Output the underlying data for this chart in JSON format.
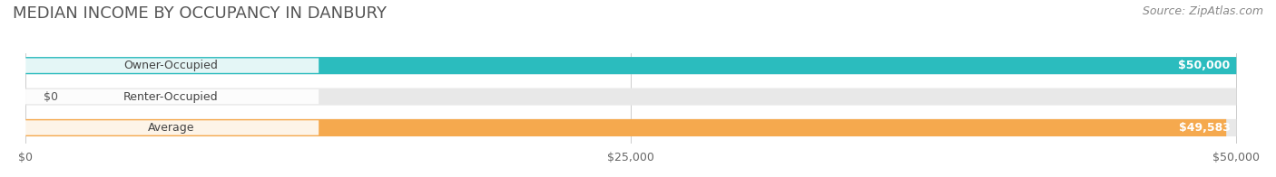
{
  "title": "MEDIAN INCOME BY OCCUPANCY IN DANBURY",
  "source": "Source: ZipAtlas.com",
  "categories": [
    "Owner-Occupied",
    "Renter-Occupied",
    "Average"
  ],
  "values": [
    50000,
    0,
    49583
  ],
  "bar_colors": [
    "#2bbcbe",
    "#c9a8d4",
    "#f5a94e"
  ],
  "bar_labels": [
    "$50,000",
    "$0",
    "$49,583"
  ],
  "label_inside": [
    true,
    false,
    true
  ],
  "xlim": [
    0,
    50000
  ],
  "xticks": [
    0,
    25000,
    50000
  ],
  "xtick_labels": [
    "$0",
    "$25,000",
    "$50,000"
  ],
  "bg_color": "#f5f5f5",
  "bar_bg_color": "#e8e8e8",
  "title_fontsize": 13,
  "source_fontsize": 9,
  "label_fontsize": 9,
  "tick_fontsize": 9,
  "bar_height": 0.55,
  "fig_width": 14.06,
  "fig_height": 1.96
}
